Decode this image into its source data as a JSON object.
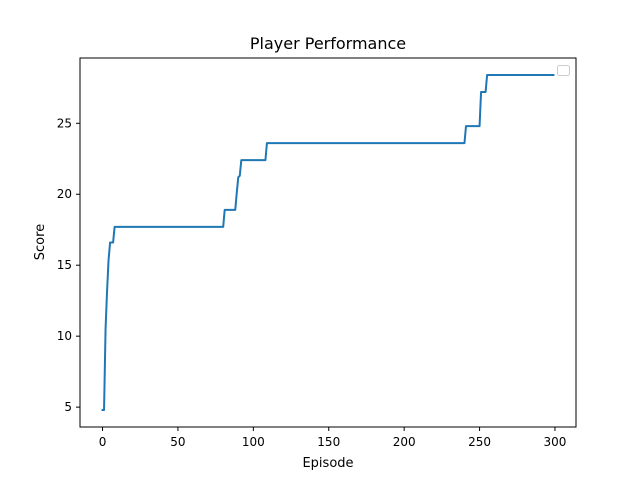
{
  "chart_data": {
    "type": "line",
    "title": "Player Performance",
    "xlabel": "Episode",
    "ylabel": "Score",
    "xlim": [
      -14.95,
      313.95
    ],
    "ylim": [
      3.6,
      29.6
    ],
    "xticks": [
      0,
      50,
      100,
      150,
      200,
      250,
      300
    ],
    "yticks": [
      5,
      10,
      15,
      20,
      25
    ],
    "grid": false,
    "legend": {
      "placement": "top-right",
      "entries": []
    },
    "series": [
      {
        "color": "#1f77b4",
        "x": [
          0,
          1,
          2,
          3,
          4,
          5,
          6,
          7,
          8,
          80,
          81,
          82,
          88,
          89,
          90,
          91,
          92,
          93,
          108,
          109,
          110,
          240,
          241,
          242,
          250,
          251,
          252,
          253,
          254,
          255,
          299
        ],
        "y": [
          4.8,
          4.8,
          10.5,
          13.2,
          15.4,
          16.6,
          16.6,
          16.6,
          17.7,
          17.7,
          18.9,
          18.9,
          18.9,
          20.1,
          21.2,
          21.3,
          22.4,
          22.4,
          22.4,
          23.6,
          23.6,
          23.6,
          24.8,
          24.8,
          24.8,
          27.2,
          27.2,
          27.2,
          27.2,
          28.4,
          28.4
        ]
      }
    ]
  }
}
